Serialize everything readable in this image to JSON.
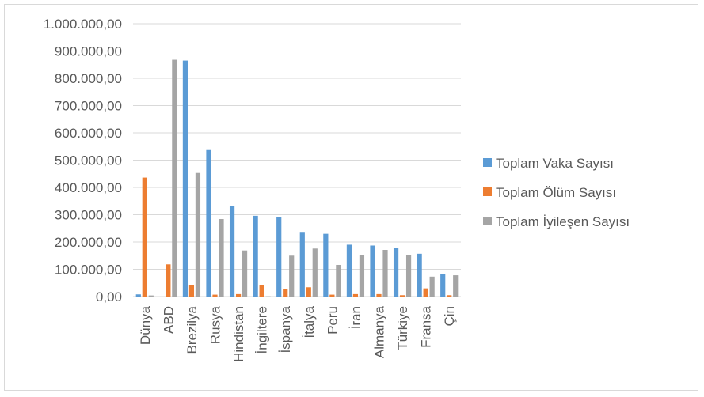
{
  "chart_data": {
    "type": "bar",
    "categories": [
      "Dünya",
      "ABD",
      "Brezilya",
      "Rusya",
      "Hindistan",
      "İngiltere",
      "İspanya",
      "İtalya",
      "Peru",
      "İran",
      "Almanya",
      "Türkiye",
      "Fransa",
      "Çin"
    ],
    "series": [
      {
        "name": "Toplam Vaka Sayısı",
        "color": "#5b9bd5",
        "values": [
          8000,
          0,
          865000,
          537000,
          333000,
          296000,
          291000,
          237000,
          230000,
          190000,
          187000,
          178000,
          157000,
          84000
        ]
      },
      {
        "name": "Toplam Ölüm Sayısı",
        "color": "#ed7d31",
        "values": [
          436000,
          118000,
          43000,
          7000,
          9000,
          42000,
          27000,
          34000,
          7000,
          9000,
          9000,
          5000,
          30000,
          5000
        ]
      },
      {
        "name": "Toplam İyileşen Sayısı",
        "color": "#a5a5a5",
        "values": [
          4000,
          868000,
          453000,
          284000,
          169000,
          1000,
          150000,
          176000,
          116000,
          151000,
          171000,
          151000,
          73000,
          78000
        ]
      }
    ],
    "yticks": [
      "0,00",
      "100.000,00",
      "200.000,00",
      "300.000,00",
      "400.000,00",
      "500.000,00",
      "600.000,00",
      "700.000,00",
      "800.000,00",
      "900.000,00",
      "1.000.000,00"
    ],
    "ylim": [
      0,
      1000000
    ],
    "grid": true,
    "legend_position": "right",
    "title": "",
    "xlabel": "",
    "ylabel": ""
  }
}
